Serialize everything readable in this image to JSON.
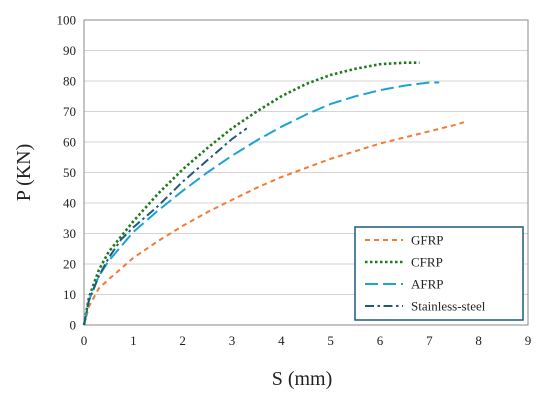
{
  "chart_data": {
    "type": "line",
    "title": "",
    "xlabel": "S (mm)",
    "ylabel": "P (KN)",
    "xlim": [
      0,
      9
    ],
    "ylim": [
      0,
      100
    ],
    "xticks": [
      "0",
      "1",
      "2",
      "3",
      "4",
      "5",
      "6",
      "7",
      "8",
      "9"
    ],
    "yticks": [
      "0",
      "10",
      "20",
      "30",
      "40",
      "50",
      "60",
      "70",
      "80",
      "90",
      "100"
    ],
    "grid": true,
    "legend_position": "bottom-right",
    "series": [
      {
        "name": "GFRP",
        "color": "#F47A33",
        "dash": "dashed",
        "x": [
          0,
          0.1,
          0.3,
          0.5,
          1,
          1.5,
          2,
          2.5,
          3,
          3.5,
          4,
          4.5,
          5,
          5.5,
          6,
          6.5,
          7,
          7.5,
          7.7
        ],
        "y": [
          0,
          6,
          12,
          15,
          22,
          27.5,
          32.5,
          37,
          41,
          45,
          48.5,
          51.5,
          54.5,
          57,
          59.5,
          61.5,
          63.5,
          65.5,
          66.5
        ]
      },
      {
        "name": "CFRP",
        "color": "#1E7A1E",
        "dash": "dotted",
        "x": [
          0,
          0.1,
          0.3,
          0.5,
          1,
          1.5,
          2,
          2.5,
          3,
          3.5,
          4,
          4.5,
          5,
          5.5,
          6,
          6.5,
          6.8
        ],
        "y": [
          0,
          9,
          18,
          24,
          34,
          43,
          51,
          58,
          64.5,
          70,
          75,
          79,
          82,
          84,
          85.5,
          86,
          86
        ]
      },
      {
        "name": "AFRP",
        "color": "#1AA3D4",
        "dash": "longdash",
        "x": [
          0,
          0.1,
          0.3,
          0.5,
          1,
          1.5,
          2,
          2.5,
          3,
          3.5,
          4,
          4.5,
          5,
          5.5,
          6,
          6.5,
          7,
          7.2
        ],
        "y": [
          0,
          8,
          16,
          21,
          30.5,
          37.5,
          44,
          50,
          55.5,
          60.5,
          65,
          69,
          72.5,
          75,
          77,
          78.5,
          79.5,
          79.5
        ]
      },
      {
        "name": "Stainless-steel",
        "color": "#1F5A7A",
        "dash": "dashdot",
        "x": [
          0,
          0.1,
          0.3,
          0.5,
          0.75,
          1,
          1.5,
          2,
          2.5,
          3,
          3.3
        ],
        "y": [
          0,
          8,
          16,
          22,
          28,
          32,
          39,
          47,
          54,
          61,
          64.5
        ]
      }
    ]
  }
}
